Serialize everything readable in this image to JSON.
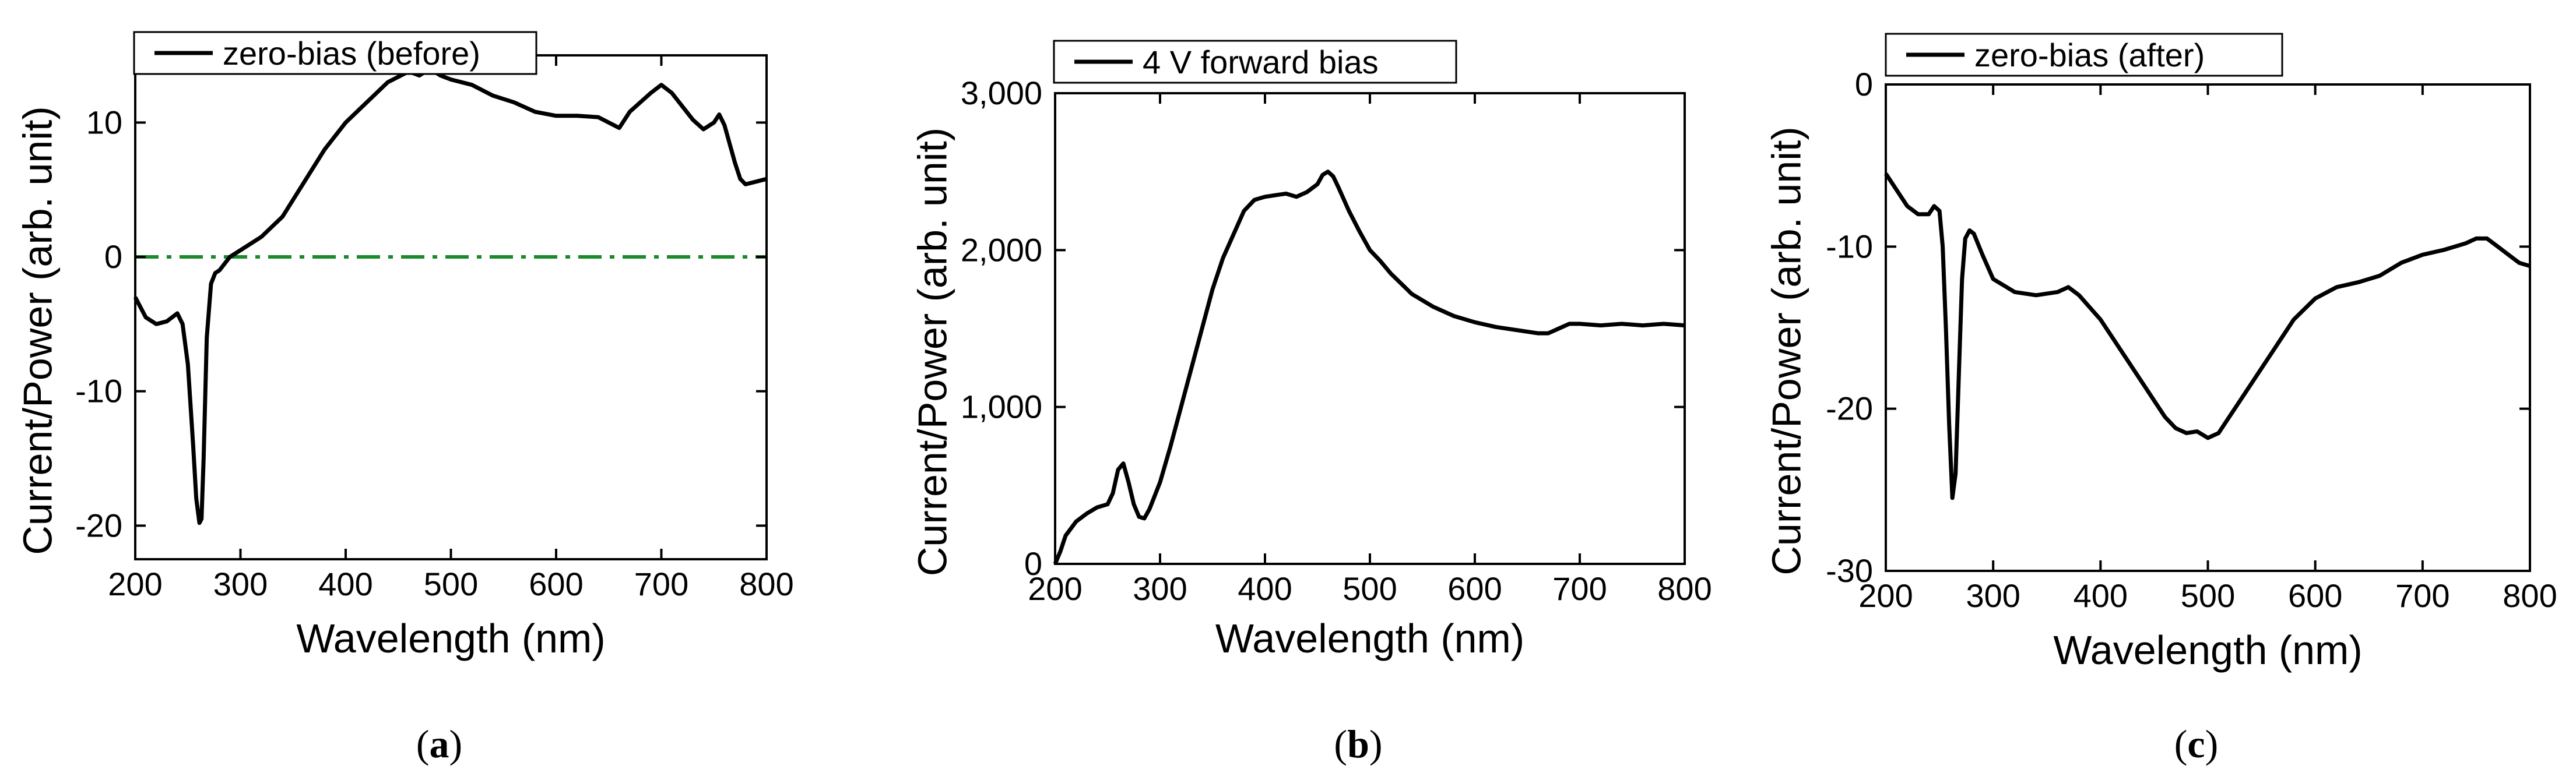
{
  "colors": {
    "line": "#000000",
    "reference": "#1a8a2a",
    "frame": "#000000"
  },
  "chart_data": [
    {
      "id": "a",
      "type": "line",
      "caption_letter": "a",
      "xlabel": "Wavelength (nm)",
      "ylabel": "Current/Power (arb. unit)",
      "xlim": [
        200,
        800
      ],
      "ylim": [
        -22.5,
        15
      ],
      "xticks": [
        200,
        300,
        400,
        500,
        600,
        700,
        800
      ],
      "yticks": [
        -20,
        -10,
        0,
        10
      ],
      "ytick_labels": [
        "-20",
        "-10",
        "0",
        "10"
      ],
      "legend": "zero-bias (before)",
      "reference_line": {
        "y": 0,
        "style": "dash-dot"
      },
      "series": [
        {
          "name": "zero-bias (before)",
          "x": [
            200,
            210,
            220,
            230,
            240,
            245,
            250,
            255,
            258,
            261,
            263,
            265,
            268,
            272,
            276,
            280,
            290,
            300,
            320,
            340,
            360,
            380,
            400,
            420,
            440,
            460,
            470,
            480,
            490,
            500,
            520,
            540,
            560,
            580,
            600,
            620,
            640,
            660,
            670,
            680,
            690,
            700,
            710,
            720,
            730,
            740,
            750,
            755,
            760,
            770,
            775,
            780,
            790,
            800
          ],
          "y": [
            -3,
            -4.5,
            -5,
            -4.8,
            -4.2,
            -5,
            -8,
            -14,
            -18,
            -19.8,
            -19.5,
            -15,
            -6,
            -2,
            -1.2,
            -1,
            0,
            0.5,
            1.5,
            3,
            5.5,
            8,
            10,
            11.5,
            13,
            13.8,
            13.5,
            14,
            13.5,
            13.2,
            12.8,
            12,
            11.5,
            10.8,
            10.5,
            10.5,
            10.4,
            9.6,
            10.8,
            11.5,
            12.2,
            12.8,
            12.2,
            11.2,
            10.2,
            9.5,
            10,
            10.6,
            9.8,
            7,
            5.8,
            5.4,
            5.6,
            5.8
          ]
        }
      ]
    },
    {
      "id": "b",
      "type": "line",
      "caption_letter": "b",
      "xlabel": "Wavelength (nm)",
      "ylabel": "Current/Power (arb. unit)",
      "xlim": [
        200,
        800
      ],
      "ylim": [
        0,
        3000
      ],
      "xticks": [
        200,
        300,
        400,
        500,
        600,
        700,
        800
      ],
      "yticks": [
        0,
        1000,
        2000,
        3000
      ],
      "ytick_labels": [
        "0",
        "1,000",
        "2,000",
        "3,000"
      ],
      "legend": "4 V forward bias",
      "series": [
        {
          "name": "4 V forward bias",
          "x": [
            200,
            205,
            210,
            220,
            230,
            240,
            250,
            255,
            260,
            265,
            270,
            275,
            280,
            285,
            290,
            300,
            310,
            320,
            330,
            340,
            350,
            360,
            370,
            380,
            390,
            400,
            410,
            420,
            430,
            440,
            450,
            455,
            460,
            465,
            470,
            480,
            490,
            500,
            510,
            520,
            540,
            560,
            580,
            600,
            620,
            640,
            660,
            670,
            680,
            690,
            700,
            720,
            740,
            760,
            780,
            800
          ],
          "y": [
            0,
            80,
            180,
            270,
            320,
            360,
            380,
            450,
            600,
            640,
            520,
            380,
            300,
            290,
            350,
            520,
            750,
            1000,
            1250,
            1500,
            1750,
            1950,
            2100,
            2250,
            2320,
            2340,
            2350,
            2360,
            2340,
            2370,
            2420,
            2480,
            2500,
            2470,
            2400,
            2250,
            2120,
            2000,
            1930,
            1850,
            1720,
            1640,
            1580,
            1540,
            1510,
            1490,
            1470,
            1470,
            1500,
            1530,
            1530,
            1520,
            1530,
            1520,
            1530,
            1520
          ]
        }
      ]
    },
    {
      "id": "c",
      "type": "line",
      "caption_letter": "c",
      "xlabel": "Wavelength (nm)",
      "ylabel": "Current/Power (arb. unit)",
      "xlim": [
        200,
        800
      ],
      "ylim": [
        -30,
        0
      ],
      "xticks": [
        200,
        300,
        400,
        500,
        600,
        700,
        800
      ],
      "yticks": [
        -30,
        -20,
        -10,
        0
      ],
      "ytick_labels": [
        "-30",
        "-20",
        "-10",
        "0"
      ],
      "legend": "zero-bias (after)",
      "series": [
        {
          "name": "zero-bias (after)",
          "x": [
            200,
            210,
            220,
            230,
            240,
            245,
            250,
            253,
            256,
            259,
            262,
            265,
            268,
            271,
            274,
            278,
            282,
            290,
            300,
            320,
            340,
            360,
            370,
            380,
            400,
            420,
            440,
            450,
            460,
            470,
            480,
            490,
            500,
            510,
            520,
            540,
            560,
            580,
            600,
            620,
            640,
            660,
            680,
            700,
            720,
            740,
            750,
            760,
            770,
            780,
            790,
            800
          ],
          "y": [
            -5.5,
            -6.5,
            -7.5,
            -8,
            -8,
            -7.5,
            -7.8,
            -10,
            -15,
            -21,
            -25.5,
            -24,
            -18,
            -12,
            -9.5,
            -9,
            -9.2,
            -10.5,
            -12,
            -12.8,
            -13,
            -12.8,
            -12.5,
            -13,
            -14.5,
            -16.5,
            -18.5,
            -19.5,
            -20.5,
            -21.2,
            -21.5,
            -21.4,
            -21.8,
            -21.5,
            -20.5,
            -18.5,
            -16.5,
            -14.5,
            -13.2,
            -12.5,
            -12.2,
            -11.8,
            -11,
            -10.5,
            -10.2,
            -9.8,
            -9.5,
            -9.5,
            -10,
            -10.5,
            -11,
            -11.2
          ]
        }
      ]
    }
  ]
}
